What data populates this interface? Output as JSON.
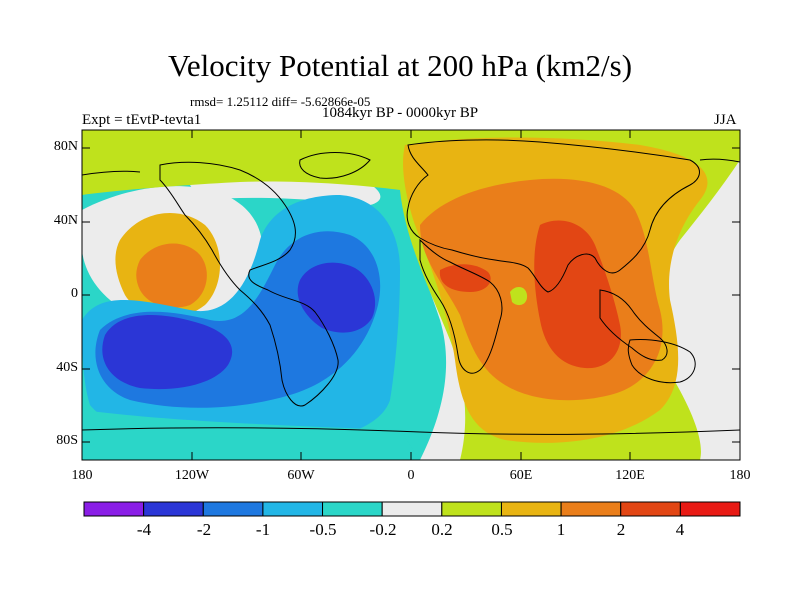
{
  "title": "Velocity Potential at 200 hPa (km2/s)",
  "stats_line": "rmsd= 1.25112 diff= -5.62866e-05",
  "experiment": "Expt = tEvtP-tevta1",
  "period": "1084kyr BP - 0000kyr BP",
  "season": "JJA",
  "y_ticks": [
    "80N",
    "40N",
    "0",
    "40S",
    "80S"
  ],
  "x_ticks": [
    "180",
    "120W",
    "60W",
    "0",
    "60E",
    "120E",
    "180"
  ],
  "colorbar": {
    "labels": [
      "-4",
      "-2",
      "-1",
      "-0.5",
      "-0.2",
      "0.2",
      "0.5",
      "1",
      "2",
      "4"
    ],
    "colors": [
      "#8a1ee6",
      "#2b36d6",
      "#1e78e0",
      "#22b6e6",
      "#2bd6c8",
      "#ececec",
      "#bfe21c",
      "#e8b412",
      "#ea7e1a",
      "#e24614",
      "#e81a14"
    ]
  },
  "colors": {
    "ocean_neutral": "#ececec",
    "coast": "#000000"
  }
}
